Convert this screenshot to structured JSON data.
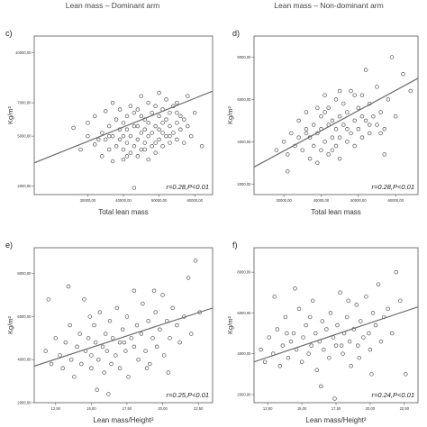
{
  "column_titles": [
    "Lean mass – Dominant arm",
    "Lean mass – Non-dominant arm"
  ],
  "chart_data": [
    {
      "type": "scatter",
      "panel": "c)",
      "xlabel": "Total lean mass",
      "ylabel": "Kg/m²",
      "annotation": "r=0.28,P<0.01",
      "xlim": [
        15000,
        65000
      ],
      "ylim": [
        1500,
        11000
      ],
      "x_ticks": [
        30000,
        40000,
        50000,
        60000
      ],
      "x_tick_labels": [
        "30000,00",
        "40000,00",
        "50000,00",
        "60000,00"
      ],
      "y_ticks": [
        2000,
        5000,
        7000,
        10000
      ],
      "y_tick_labels": [
        "2000,00",
        "5000,00",
        "7000,00",
        "10000,00"
      ],
      "trend_line": {
        "x": [
          15000,
          65000
        ],
        "y": [
          3400,
          7700
        ]
      },
      "points": [
        [
          26000,
          5500
        ],
        [
          28000,
          4200
        ],
        [
          30000,
          5000
        ],
        [
          30000,
          5800
        ],
        [
          32000,
          4500
        ],
        [
          32000,
          6200
        ],
        [
          34000,
          3800
        ],
        [
          34000,
          5200
        ],
        [
          35000,
          4800
        ],
        [
          35000,
          6500
        ],
        [
          36000,
          4200
        ],
        [
          36000,
          5600
        ],
        [
          37000,
          3500
        ],
        [
          37000,
          5000
        ],
        [
          37000,
          7000
        ],
        [
          38000,
          4400
        ],
        [
          38000,
          6000
        ],
        [
          39000,
          4800
        ],
        [
          39000,
          5400
        ],
        [
          39000,
          6600
        ],
        [
          40000,
          4200
        ],
        [
          40000,
          5000
        ],
        [
          40000,
          5800
        ],
        [
          40000,
          3600
        ],
        [
          41000,
          4600
        ],
        [
          41000,
          5400
        ],
        [
          41000,
          6200
        ],
        [
          42000,
          4000
        ],
        [
          42000,
          5000
        ],
        [
          42000,
          6800
        ],
        [
          43000,
          4400
        ],
        [
          43000,
          5600
        ],
        [
          43000,
          6400
        ],
        [
          43000,
          1900
        ],
        [
          44000,
          3800
        ],
        [
          44000,
          4800
        ],
        [
          44000,
          5600
        ],
        [
          45000,
          4200
        ],
        [
          45000,
          5200
        ],
        [
          45000,
          6200
        ],
        [
          45000,
          7400
        ],
        [
          46000,
          4600
        ],
        [
          46000,
          5400
        ],
        [
          46000,
          6000
        ],
        [
          47000,
          3600
        ],
        [
          47000,
          5000
        ],
        [
          47000,
          5800
        ],
        [
          47000,
          7000
        ],
        [
          48000,
          4400
        ],
        [
          48000,
          5200
        ],
        [
          48000,
          6400
        ],
        [
          49000,
          4000
        ],
        [
          49000,
          5600
        ],
        [
          49000,
          6800
        ],
        [
          50000,
          4800
        ],
        [
          50000,
          5400
        ],
        [
          50000,
          6200
        ],
        [
          50000,
          7600
        ],
        [
          51000,
          4400
        ],
        [
          51000,
          5800
        ],
        [
          51000,
          6600
        ],
        [
          52000,
          5000
        ],
        [
          52000,
          6000
        ],
        [
          52000,
          7200
        ],
        [
          53000,
          4600
        ],
        [
          53000,
          5600
        ],
        [
          53000,
          6400
        ],
        [
          54000,
          5200
        ],
        [
          54000,
          6800
        ],
        [
          55000,
          4800
        ],
        [
          55000,
          5800
        ],
        [
          55000,
          7000
        ],
        [
          56000,
          5400
        ],
        [
          56000,
          6200
        ],
        [
          57000,
          4600
        ],
        [
          57000,
          6000
        ],
        [
          58000,
          5600
        ],
        [
          58000,
          7400
        ],
        [
          59000,
          5000
        ],
        [
          60000,
          6400
        ],
        [
          62000,
          4400
        ],
        [
          33000,
          4800
        ],
        [
          36000,
          5000
        ],
        [
          41000,
          3800
        ],
        [
          44000,
          6600
        ],
        [
          46000,
          4200
        ],
        [
          49000,
          4600
        ],
        [
          51000,
          5200
        ],
        [
          53000,
          5000
        ],
        [
          55000,
          6400
        ]
      ]
    },
    {
      "type": "scatter",
      "panel": "d)",
      "xlabel": "Total lean mass",
      "ylabel": "Kg/m²",
      "annotation": "r=0.28,P<0.01",
      "xlim": [
        22000,
        66000
      ],
      "ylim": [
        1500,
        9000
      ],
      "x_ticks": [
        30000,
        40000,
        50000,
        60000
      ],
      "x_tick_labels": [
        "30000,00",
        "40000,00",
        "50000,00",
        "60000,00"
      ],
      "y_ticks": [
        2000,
        4000,
        6000,
        8000
      ],
      "y_tick_labels": [
        "2000,00",
        "4000,00",
        "6000,00",
        "8000,00"
      ],
      "trend_line": {
        "x": [
          22000,
          66000
        ],
        "y": [
          2800,
          7000
        ]
      },
      "points": [
        [
          28000,
          3600
        ],
        [
          30000,
          4000
        ],
        [
          31000,
          3400
        ],
        [
          32000,
          4400
        ],
        [
          33000,
          3800
        ],
        [
          34000,
          4200
        ],
        [
          34000,
          5000
        ],
        [
          35000,
          3600
        ],
        [
          36000,
          4600
        ],
        [
          36000,
          5400
        ],
        [
          37000,
          3200
        ],
        [
          37000,
          4200
        ],
        [
          38000,
          4800
        ],
        [
          38000,
          3800
        ],
        [
          39000,
          4400
        ],
        [
          39000,
          5600
        ],
        [
          40000,
          3600
        ],
        [
          40000,
          4600
        ],
        [
          40000,
          5200
        ],
        [
          41000,
          4000
        ],
        [
          41000,
          6200
        ],
        [
          42000,
          3400
        ],
        [
          42000,
          4800
        ],
        [
          42000,
          5600
        ],
        [
          43000,
          4200
        ],
        [
          43000,
          5000
        ],
        [
          44000,
          3800
        ],
        [
          44000,
          4600
        ],
        [
          44000,
          6000
        ],
        [
          45000,
          4200
        ],
        [
          45000,
          5200
        ],
        [
          45000,
          3200
        ],
        [
          46000,
          4800
        ],
        [
          46000,
          5800
        ],
        [
          47000,
          4000
        ],
        [
          47000,
          5400
        ],
        [
          48000,
          4400
        ],
        [
          48000,
          6400
        ],
        [
          49000,
          3800
        ],
        [
          49000,
          5000
        ],
        [
          50000,
          4600
        ],
        [
          50000,
          5600
        ],
        [
          51000,
          4200
        ],
        [
          51000,
          6200
        ],
        [
          52000,
          5000
        ],
        [
          52000,
          7400
        ],
        [
          53000,
          4400
        ],
        [
          53000,
          5800
        ],
        [
          54000,
          5200
        ],
        [
          55000,
          4800
        ],
        [
          55000,
          6600
        ],
        [
          56000,
          5400
        ],
        [
          57000,
          4600
        ],
        [
          58000,
          6000
        ],
        [
          59000,
          8000
        ],
        [
          60000,
          5200
        ],
        [
          62000,
          7200
        ],
        [
          64000,
          6400
        ],
        [
          36000,
          4400
        ],
        [
          41000,
          5400
        ],
        [
          43000,
          3600
        ],
        [
          45000,
          6400
        ],
        [
          47000,
          4600
        ],
        [
          49000,
          6200
        ],
        [
          51000,
          5200
        ],
        [
          53000,
          4800
        ],
        [
          56000,
          4400
        ],
        [
          31000,
          2600
        ],
        [
          39000,
          3000
        ],
        [
          57000,
          3400
        ]
      ]
    },
    {
      "type": "scatter",
      "panel": "e)",
      "xlabel": "Lean mass/Height²",
      "ylabel": "Kg/m²",
      "annotation": "r=0.25,P<0.01",
      "xlim": [
        11,
        23.5
      ],
      "ylim": [
        2000,
        9200
      ],
      "x_ticks": [
        12.5,
        15,
        17.5,
        20,
        22.5
      ],
      "x_tick_labels": [
        "12,50",
        "15,00",
        "17,50",
        "20,00",
        "22,50"
      ],
      "y_ticks": [
        2000,
        4000,
        6000,
        8000
      ],
      "y_tick_labels": [
        "2000,00",
        "4000,00",
        "6000,00",
        "8000,00"
      ],
      "trend_line": {
        "x": [
          11,
          23.5
        ],
        "y": [
          3700,
          6400
        ]
      },
      "points": [
        [
          11.8,
          4400
        ],
        [
          12.2,
          3800
        ],
        [
          12.5,
          5000
        ],
        [
          12.8,
          4200
        ],
        [
          13.0,
          3600
        ],
        [
          13.2,
          4800
        ],
        [
          13.5,
          5600
        ],
        [
          13.6,
          4000
        ],
        [
          13.8,
          3200
        ],
        [
          14.0,
          4600
        ],
        [
          14.2,
          5200
        ],
        [
          14.3,
          3800
        ],
        [
          14.5,
          6800
        ],
        [
          14.6,
          4400
        ],
        [
          14.8,
          5000
        ],
        [
          15.0,
          3600
        ],
        [
          15.0,
          4200
        ],
        [
          15.2,
          5600
        ],
        [
          15.3,
          4800
        ],
        [
          15.5,
          4000
        ],
        [
          15.6,
          6200
        ],
        [
          15.8,
          4600
        ],
        [
          15.9,
          3400
        ],
        [
          16.0,
          5200
        ],
        [
          16.1,
          4400
        ],
        [
          16.3,
          5800
        ],
        [
          16.4,
          3800
        ],
        [
          16.5,
          5000
        ],
        [
          16.7,
          4200
        ],
        [
          16.8,
          6400
        ],
        [
          17.0,
          4800
        ],
        [
          17.0,
          3600
        ],
        [
          17.2,
          5400
        ],
        [
          17.4,
          4400
        ],
        [
          17.5,
          6000
        ],
        [
          17.6,
          3200
        ],
        [
          17.8,
          5000
        ],
        [
          18.0,
          4600
        ],
        [
          18.0,
          7200
        ],
        [
          18.2,
          5600
        ],
        [
          18.3,
          4000
        ],
        [
          18.5,
          5200
        ],
        [
          18.6,
          6600
        ],
        [
          18.8,
          4400
        ],
        [
          19.0,
          5800
        ],
        [
          19.1,
          3800
        ],
        [
          19.3,
          5000
        ],
        [
          19.5,
          6200
        ],
        [
          19.6,
          4600
        ],
        [
          19.8,
          5400
        ],
        [
          20.0,
          7000
        ],
        [
          20.1,
          4200
        ],
        [
          20.3,
          5800
        ],
        [
          20.5,
          5000
        ],
        [
          20.7,
          6400
        ],
        [
          21.0,
          5600
        ],
        [
          21.2,
          4800
        ],
        [
          21.5,
          6000
        ],
        [
          21.8,
          7800
        ],
        [
          22.0,
          5200
        ],
        [
          22.3,
          8600
        ],
        [
          22.6,
          6200
        ],
        [
          12.0,
          6800
        ],
        [
          13.4,
          7400
        ],
        [
          16.2,
          2400
        ],
        [
          14.9,
          6000
        ],
        [
          17.3,
          4800
        ],
        [
          18.9,
          3600
        ],
        [
          20.4,
          3400
        ],
        [
          15.4,
          2600
        ],
        [
          19.4,
          7200
        ]
      ]
    },
    {
      "type": "scatter",
      "panel": "f)",
      "xlabel": "Lean mass/Height²",
      "ylabel": "Kg/m²",
      "annotation": "r=0.24,P<0.01",
      "xlim": [
        11.5,
        23.5
      ],
      "ylim": [
        1600,
        9200
      ],
      "x_ticks": [
        12.5,
        15,
        17.5,
        20,
        22.5
      ],
      "x_tick_labels": [
        "12,50",
        "15,00",
        "17,50",
        "20,00",
        "22,50"
      ],
      "y_ticks": [
        2000,
        4000,
        6000,
        8000
      ],
      "y_tick_labels": [
        "2000,00",
        "4000,00",
        "6000,00",
        "8000,00"
      ],
      "trend_line": {
        "x": [
          11.5,
          23.5
        ],
        "y": [
          3600,
          6300
        ]
      },
      "points": [
        [
          12.0,
          4200
        ],
        [
          12.3,
          3600
        ],
        [
          12.6,
          4800
        ],
        [
          12.9,
          4000
        ],
        [
          13.2,
          5200
        ],
        [
          13.4,
          3400
        ],
        [
          13.6,
          4400
        ],
        [
          13.8,
          5800
        ],
        [
          14.0,
          3800
        ],
        [
          14.2,
          4600
        ],
        [
          14.4,
          5000
        ],
        [
          14.6,
          4200
        ],
        [
          14.8,
          6200
        ],
        [
          15.0,
          3600
        ],
        [
          15.1,
          4800
        ],
        [
          15.3,
          5400
        ],
        [
          15.5,
          4000
        ],
        [
          15.7,
          4400
        ],
        [
          15.8,
          6600
        ],
        [
          16.0,
          5000
        ],
        [
          16.1,
          3200
        ],
        [
          16.3,
          4600
        ],
        [
          16.5,
          5600
        ],
        [
          16.6,
          4200
        ],
        [
          16.8,
          5200
        ],
        [
          17.0,
          3800
        ],
        [
          17.1,
          6000
        ],
        [
          17.3,
          4800
        ],
        [
          17.5,
          4400
        ],
        [
          17.6,
          5400
        ],
        [
          17.8,
          7000
        ],
        [
          18.0,
          4000
        ],
        [
          18.1,
          5000
        ],
        [
          18.3,
          5800
        ],
        [
          18.5,
          4600
        ],
        [
          18.6,
          3400
        ],
        [
          18.8,
          5200
        ],
        [
          19.0,
          6400
        ],
        [
          19.1,
          4400
        ],
        [
          19.3,
          5600
        ],
        [
          19.5,
          4800
        ],
        [
          19.7,
          6800
        ],
        [
          19.9,
          5000
        ],
        [
          20.0,
          4200
        ],
        [
          20.2,
          6000
        ],
        [
          20.4,
          5400
        ],
        [
          20.6,
          7400
        ],
        [
          20.8,
          4600
        ],
        [
          21.0,
          5800
        ],
        [
          21.3,
          6200
        ],
        [
          21.6,
          5000
        ],
        [
          21.9,
          8000
        ],
        [
          22.2,
          6600
        ],
        [
          22.6,
          3000
        ],
        [
          13.0,
          6800
        ],
        [
          14.5,
          7200
        ],
        [
          16.4,
          2400
        ],
        [
          17.4,
          1800
        ],
        [
          18.4,
          6600
        ],
        [
          20.1,
          3000
        ],
        [
          15.6,
          5800
        ],
        [
          19.2,
          3800
        ],
        [
          13.9,
          5000
        ],
        [
          17.9,
          4400
        ]
      ]
    }
  ]
}
